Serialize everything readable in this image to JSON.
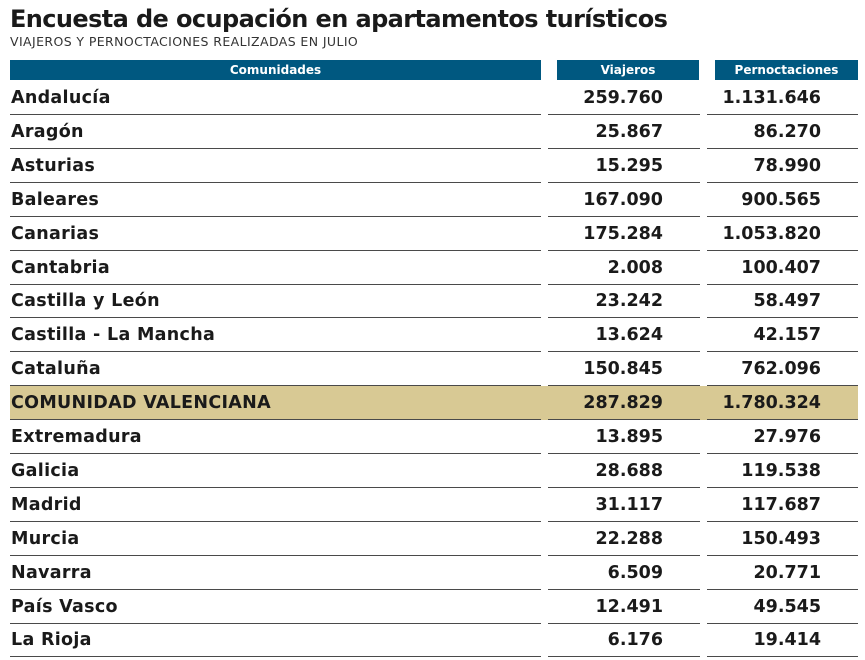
{
  "chart_data": {
    "type": "table",
    "title": "Encuesta de ocupación en apartamentos turísticos",
    "subtitle": "VIAJEROS Y PERNOCTACIONES REALIZADAS EN JULIO",
    "columns": [
      "Comunidades",
      "Viajeros",
      "Pernoctaciones"
    ],
    "rows": [
      {
        "name": "Andalucía",
        "viajeros": "259.760",
        "pernoctaciones": "1.131.646"
      },
      {
        "name": "Aragón",
        "viajeros": "25.867",
        "pernoctaciones": "86.270"
      },
      {
        "name": "Asturias",
        "viajeros": "15.295",
        "pernoctaciones": "78.990"
      },
      {
        "name": "Baleares",
        "viajeros": "167.090",
        "pernoctaciones": "900.565"
      },
      {
        "name": "Canarias",
        "viajeros": "175.284",
        "pernoctaciones": "1.053.820"
      },
      {
        "name": "Cantabria",
        "viajeros": "2.008",
        "pernoctaciones": "100.407"
      },
      {
        "name": "Castilla y León",
        "viajeros": "23.242",
        "pernoctaciones": "58.497"
      },
      {
        "name": "Castilla - La Mancha",
        "viajeros": "13.624",
        "pernoctaciones": "42.157"
      },
      {
        "name": "Cataluña",
        "viajeros": "150.845",
        "pernoctaciones": "762.096"
      },
      {
        "name": "COMUNIDAD VALENCIANA",
        "viajeros": "287.829",
        "pernoctaciones": "1.780.324",
        "highlight": true
      },
      {
        "name": "Extremadura",
        "viajeros": "13.895",
        "pernoctaciones": "27.976"
      },
      {
        "name": "Galicia",
        "viajeros": "28.688",
        "pernoctaciones": "119.538"
      },
      {
        "name": "Madrid",
        "viajeros": "31.117",
        "pernoctaciones": "117.687"
      },
      {
        "name": "Murcia",
        "viajeros": "22.288",
        "pernoctaciones": "150.493"
      },
      {
        "name": "Navarra",
        "viajeros": "6.509",
        "pernoctaciones": "20.771"
      },
      {
        "name": "País Vasco",
        "viajeros": "12.491",
        "pernoctaciones": "49.545"
      },
      {
        "name": "La Rioja",
        "viajeros": "6.176",
        "pernoctaciones": "19.414"
      }
    ]
  },
  "colors": {
    "header_bg": "#005880",
    "header_text": "#ffffff",
    "highlight_bg": "#d8c994",
    "rule": "#4a4a4a"
  }
}
